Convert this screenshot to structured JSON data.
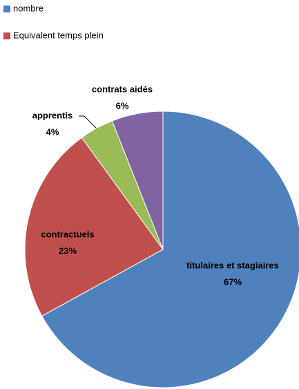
{
  "chart_data": {
    "type": "pie",
    "legend": [
      {
        "name": "nombre",
        "color": "#4f81bd"
      },
      {
        "name": "Equivalent temps plein",
        "color": "#c0504d"
      }
    ],
    "categories": [
      "titulaires et stagiaires",
      "contractuels",
      "apprentis",
      "contrats aidés"
    ],
    "values": [
      67,
      23,
      4,
      6
    ],
    "value_labels": [
      "67%",
      "23%",
      "4%",
      "6%"
    ],
    "colors": [
      "#4f81bd",
      "#c0504d",
      "#9bbb59",
      "#8064a2"
    ]
  }
}
